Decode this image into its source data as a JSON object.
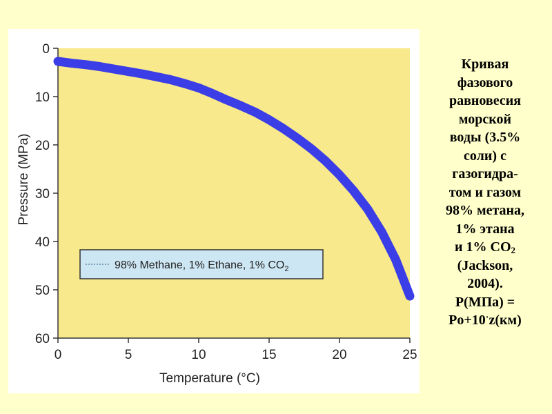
{
  "slide": {
    "background": "#ffffcc",
    "caption": {
      "lines": [
        "Кривая",
        "фазового",
        "равновесия",
        "морской",
        "воды (3.5%",
        "соли) с",
        "газогидра-",
        "том и газом",
        "98% метана,",
        "1% этана"
      ],
      "co2_prefix": "и 1% CO",
      "co2_sub": "2",
      "citation_1": "(Jackson,",
      "citation_2": "2004).",
      "formula_1": "P(МПа) =",
      "formula_2_a": "Po+10",
      "formula_2_dot": "·",
      "formula_2_b": "z(км)"
    }
  },
  "chart_data": {
    "type": "line",
    "xlabel": "Temperature (°C)",
    "ylabel": "Pressure (MPa)",
    "xlim": [
      0,
      25
    ],
    "ylim": [
      0,
      60
    ],
    "y_inverted": true,
    "x_ticks": [
      0,
      5,
      10,
      15,
      20,
      25
    ],
    "y_ticks": [
      0,
      10,
      20,
      30,
      40,
      50,
      60
    ],
    "grid": false,
    "plot_background": "#f8e98c",
    "series": [
      {
        "name": "98% Methane, 1% Ethane, 1% CO",
        "name_sub": "2",
        "color": "#3b3ee6",
        "x": [
          0,
          1,
          2,
          3,
          4,
          5,
          6,
          7,
          8,
          9,
          10,
          11,
          12,
          13,
          14,
          15,
          16,
          17,
          18,
          19,
          20,
          21,
          22,
          23,
          24,
          25
        ],
        "y": [
          2.7,
          3.1,
          3.4,
          3.8,
          4.3,
          4.8,
          5.3,
          5.9,
          6.5,
          7.3,
          8.2,
          9.4,
          10.7,
          11.9,
          13.2,
          14.8,
          16.6,
          18.6,
          20.8,
          23.3,
          26.2,
          29.5,
          33.3,
          38.0,
          43.8,
          51.3
        ]
      }
    ],
    "legend": "inside, lower-left"
  }
}
